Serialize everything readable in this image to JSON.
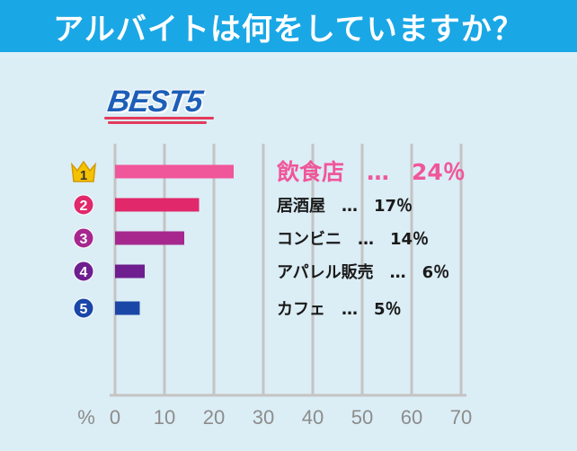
{
  "header": {
    "title": "アルバイトは何をしていますか？"
  },
  "badge": {
    "text": "BEST5"
  },
  "chart_data": {
    "type": "bar",
    "orientation": "horizontal",
    "categories": [
      "飲食店",
      "居酒屋",
      "コンビニ",
      "アパレル販売",
      "カフェ"
    ],
    "values": [
      24,
      17,
      14,
      6,
      5
    ],
    "ranks": [
      "1",
      "2",
      "3",
      "4",
      "5"
    ],
    "labels": [
      "飲食店　…　24％",
      "居酒屋　…　17％",
      "コンビニ　…　14％",
      "アパレル販売　…　6％",
      "カフェ　…　5％"
    ],
    "colors": [
      "#f0569a",
      "#e0286a",
      "#a6288e",
      "#6e1e8e",
      "#1a46a8"
    ],
    "rank_colors": [
      "#f5c200",
      "#e0286a",
      "#a6288e",
      "#6e1e8e",
      "#1a46a8"
    ],
    "xlim": [
      0,
      70
    ],
    "xticks": [
      "0",
      "10",
      "20",
      "30",
      "40",
      "50",
      "60",
      "70"
    ],
    "xunit": "%",
    "grid": true
  }
}
